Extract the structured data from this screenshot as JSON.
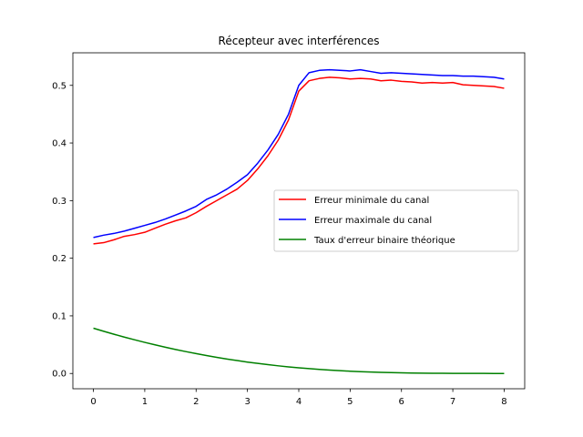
{
  "chart_data": {
    "type": "line",
    "title": "Récepteur avec interférences",
    "xlabel": "",
    "ylabel": "",
    "xlim": [
      -0.4,
      8.4
    ],
    "ylim": [
      -0.0265,
      0.5565
    ],
    "xticks": [
      0,
      1,
      2,
      3,
      4,
      5,
      6,
      7,
      8
    ],
    "xtick_labels": [
      "0",
      "1",
      "2",
      "3",
      "4",
      "5",
      "6",
      "7",
      "8"
    ],
    "yticks": [
      0.0,
      0.1,
      0.2,
      0.3,
      0.4,
      0.5
    ],
    "ytick_labels": [
      "0.0",
      "0.1",
      "0.2",
      "0.3",
      "0.4",
      "0.5"
    ],
    "grid": false,
    "legend_position": "center-right",
    "x": [
      0.0,
      0.2,
      0.4,
      0.6,
      0.8,
      1.0,
      1.2,
      1.4,
      1.6,
      1.8,
      2.0,
      2.2,
      2.4,
      2.6,
      2.8,
      3.0,
      3.2,
      3.4,
      3.6,
      3.8,
      4.0,
      4.2,
      4.4,
      4.6,
      4.8,
      5.0,
      5.2,
      5.4,
      5.6,
      5.8,
      6.0,
      6.2,
      6.4,
      6.6,
      6.8,
      7.0,
      7.2,
      7.4,
      7.6,
      7.8,
      8.0
    ],
    "series": [
      {
        "name": "Erreur minimale du canal",
        "color": "#ff0000",
        "values": [
          0.225,
          0.227,
          0.232,
          0.238,
          0.241,
          0.245,
          0.252,
          0.259,
          0.265,
          0.27,
          0.279,
          0.29,
          0.3,
          0.31,
          0.32,
          0.335,
          0.355,
          0.378,
          0.405,
          0.44,
          0.49,
          0.508,
          0.512,
          0.514,
          0.513,
          0.511,
          0.512,
          0.511,
          0.508,
          0.509,
          0.507,
          0.506,
          0.504,
          0.505,
          0.504,
          0.505,
          0.501,
          0.5,
          0.499,
          0.498,
          0.495
        ]
      },
      {
        "name": "Erreur maximale du canal",
        "color": "#0000ff",
        "values": [
          0.236,
          0.24,
          0.243,
          0.247,
          0.252,
          0.257,
          0.262,
          0.268,
          0.275,
          0.282,
          0.29,
          0.302,
          0.31,
          0.32,
          0.332,
          0.345,
          0.365,
          0.388,
          0.415,
          0.45,
          0.5,
          0.522,
          0.526,
          0.527,
          0.526,
          0.525,
          0.527,
          0.524,
          0.521,
          0.522,
          0.521,
          0.52,
          0.519,
          0.518,
          0.517,
          0.517,
          0.516,
          0.516,
          0.515,
          0.514,
          0.511
        ]
      },
      {
        "name": "Taux d'erreur binaire théorique",
        "color": "#008000",
        "values": [
          0.0786,
          0.0732,
          0.0681,
          0.0632,
          0.0585,
          0.054,
          0.0497,
          0.0456,
          0.0417,
          0.038,
          0.0345,
          0.0312,
          0.028,
          0.0251,
          0.0224,
          0.0198,
          0.0175,
          0.0153,
          0.0133,
          0.0115,
          0.0099,
          0.0084,
          0.0071,
          0.0059,
          0.0049,
          0.004,
          0.0032,
          0.0025,
          0.002,
          0.0015,
          0.0011,
          0.0008,
          0.0006,
          0.0004,
          0.0003,
          0.0002,
          0.0001,
          0.0001,
          0.0001,
          0.0,
          0.0
        ]
      }
    ]
  }
}
